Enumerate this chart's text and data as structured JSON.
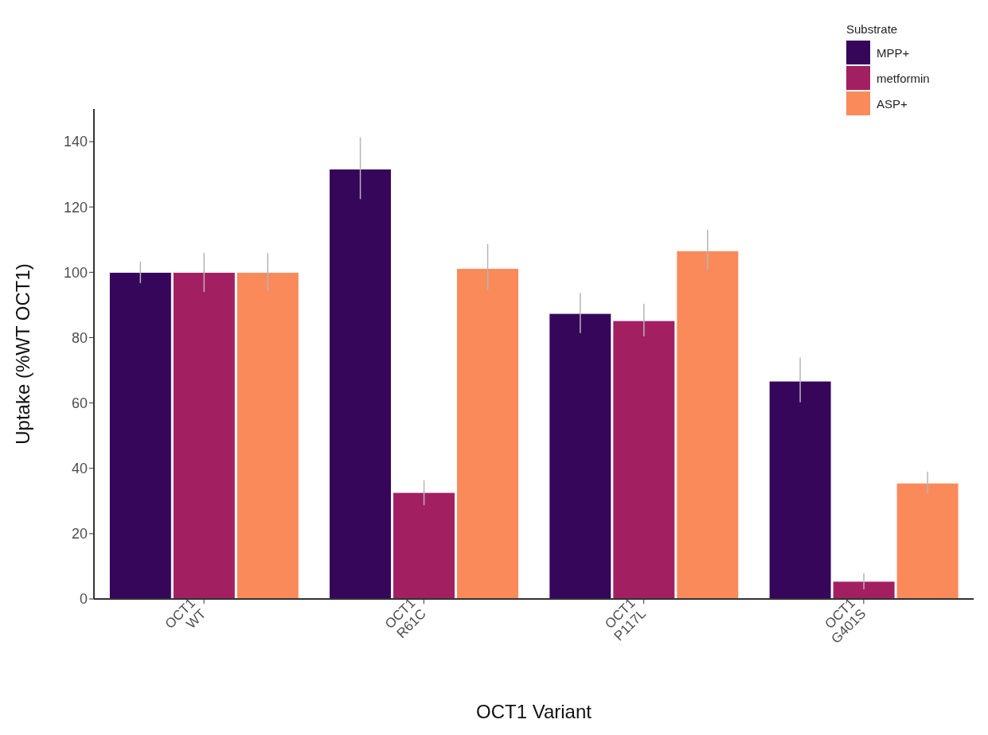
{
  "chart_data": {
    "type": "bar",
    "xlabel": "OCT1 Variant",
    "ylabel": "Uptake (%WT OCT1)",
    "legend_title": "Substrate",
    "legend": "top right",
    "grid": false,
    "categories": [
      "OCT1\nWT",
      "OCT1\nR61C",
      "OCT1\nP117L",
      "OCT1\nG401S"
    ],
    "series": [
      {
        "name": "MPP+",
        "color": "#35065a",
        "values": [
          100,
          131.6,
          87.4,
          66.7
        ],
        "errors": [
          [
            96.7,
            103.3
          ],
          [
            122.4,
            141.3
          ],
          [
            81.4,
            93.7
          ],
          [
            60.2,
            73.9
          ]
        ]
      },
      {
        "name": "metformin",
        "color": "#a21f62",
        "values": [
          100,
          32.6,
          85.2,
          5.4
        ],
        "errors": [
          [
            94,
            106
          ],
          [
            28.7,
            36.3
          ],
          [
            80.4,
            90.4
          ],
          [
            2.9,
            7.9
          ]
        ]
      },
      {
        "name": "ASP+",
        "color": "#fa8a5a",
        "values": [
          100,
          101.2,
          106.6,
          35.5
        ],
        "errors": [
          [
            94.3,
            105.9
          ],
          [
            94.5,
            108.6
          ],
          [
            100.7,
            113
          ],
          [
            32.4,
            39
          ]
        ]
      }
    ],
    "ylim": [
      0,
      150
    ],
    "yticks": [
      0,
      20,
      40,
      60,
      80,
      100,
      120,
      140
    ]
  }
}
